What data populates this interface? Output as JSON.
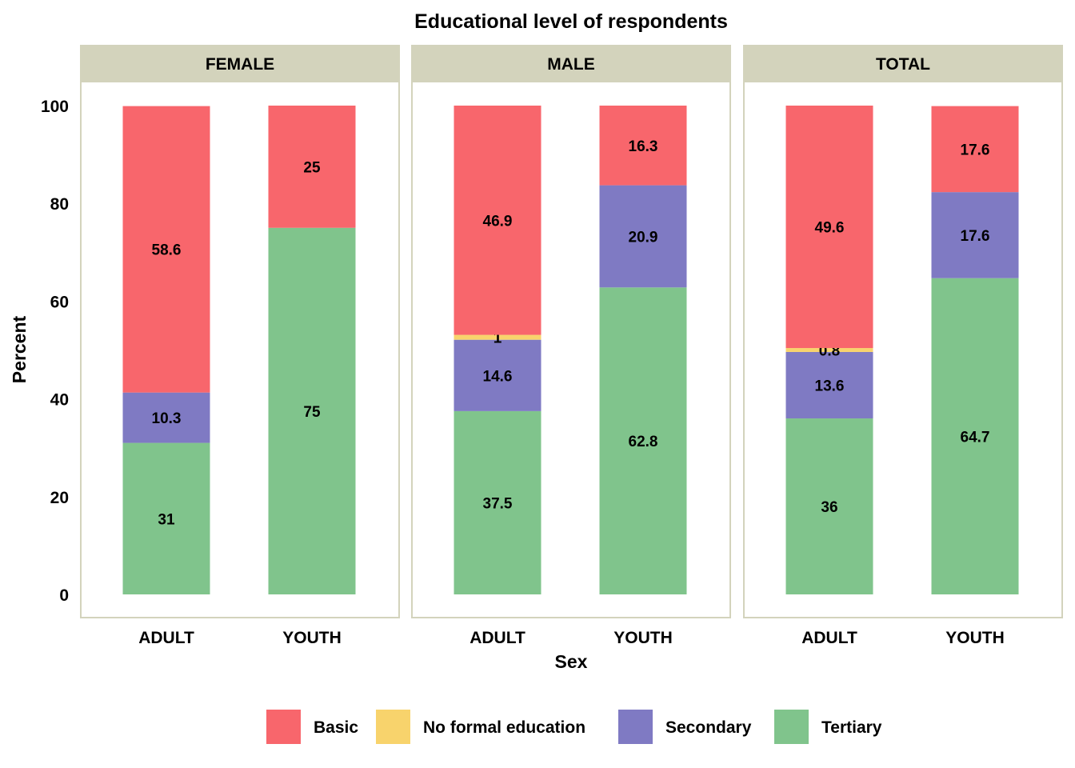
{
  "chart_data": {
    "type": "bar",
    "stacked": true,
    "title": "Educational level of respondents",
    "xlabel": "Sex",
    "ylabel": "Percent",
    "ylim": [
      0,
      100
    ],
    "yticks": [
      0,
      20,
      40,
      60,
      80,
      100
    ],
    "grid": false,
    "legend_position": "bottom",
    "categories": [
      "ADULT",
      "YOUTH"
    ],
    "series": [
      {
        "name": "Basic",
        "color": "#F8666C"
      },
      {
        "name": "No formal education",
        "color": "#F8D36C"
      },
      {
        "name": "Secondary",
        "color": "#7F7AC3"
      },
      {
        "name": "Tertiary",
        "color": "#80C48C"
      }
    ],
    "stack_order": [
      "Tertiary",
      "Secondary",
      "No formal education",
      "Basic"
    ],
    "panels": [
      {
        "label": "FEMALE",
        "bars": [
          {
            "category": "ADULT",
            "values": {
              "Tertiary": 31,
              "Secondary": 10.3,
              "No formal education": 0,
              "Basic": 58.6
            }
          },
          {
            "category": "YOUTH",
            "values": {
              "Tertiary": 75,
              "Secondary": 0,
              "No formal education": 0,
              "Basic": 25
            }
          }
        ]
      },
      {
        "label": "MALE",
        "bars": [
          {
            "category": "ADULT",
            "values": {
              "Tertiary": 37.5,
              "Secondary": 14.6,
              "No formal education": 1,
              "Basic": 46.9
            }
          },
          {
            "category": "YOUTH",
            "values": {
              "Tertiary": 62.8,
              "Secondary": 20.9,
              "No formal education": 0,
              "Basic": 16.3
            }
          }
        ]
      },
      {
        "label": "TOTAL",
        "bars": [
          {
            "category": "ADULT",
            "values": {
              "Tertiary": 36,
              "Secondary": 13.6,
              "No formal education": 0.8,
              "Basic": 49.6
            }
          },
          {
            "category": "YOUTH",
            "values": {
              "Tertiary": 64.7,
              "Secondary": 17.6,
              "No formal education": 0,
              "Basic": 17.6
            }
          }
        ]
      }
    ],
    "panel_strip_color": "#D3D3BC",
    "panel_border_color": "#D3D3BC"
  }
}
